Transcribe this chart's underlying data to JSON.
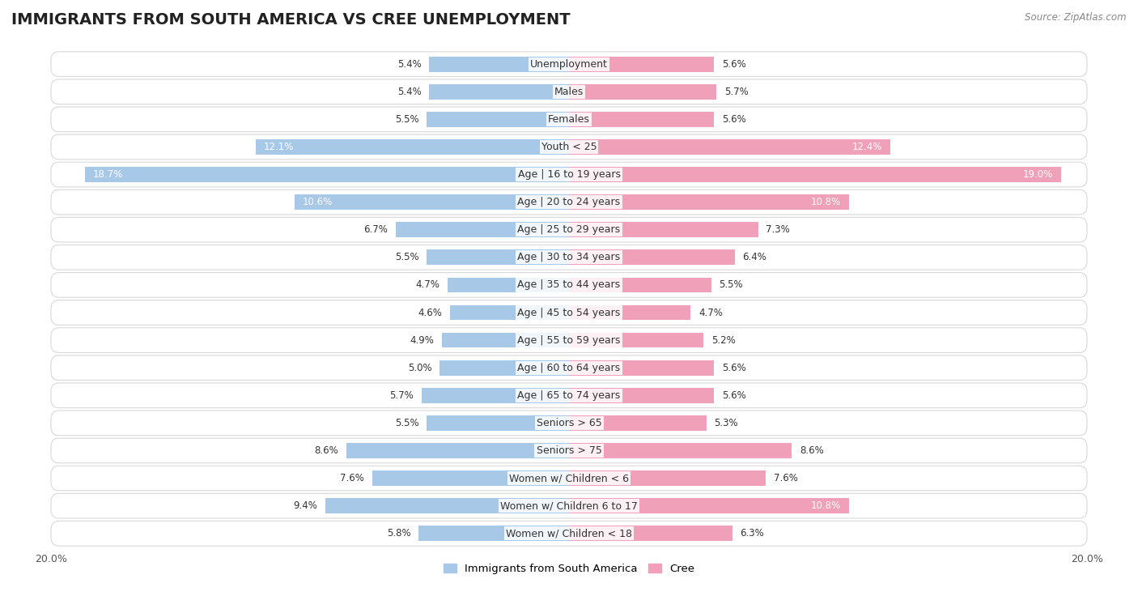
{
  "title": "IMMIGRANTS FROM SOUTH AMERICA VS CREE UNEMPLOYMENT",
  "source": "Source: ZipAtlas.com",
  "categories": [
    "Unemployment",
    "Males",
    "Females",
    "Youth < 25",
    "Age | 16 to 19 years",
    "Age | 20 to 24 years",
    "Age | 25 to 29 years",
    "Age | 30 to 34 years",
    "Age | 35 to 44 years",
    "Age | 45 to 54 years",
    "Age | 55 to 59 years",
    "Age | 60 to 64 years",
    "Age | 65 to 74 years",
    "Seniors > 65",
    "Seniors > 75",
    "Women w/ Children < 6",
    "Women w/ Children 6 to 17",
    "Women w/ Children < 18"
  ],
  "left_values": [
    5.4,
    5.4,
    5.5,
    12.1,
    18.7,
    10.6,
    6.7,
    5.5,
    4.7,
    4.6,
    4.9,
    5.0,
    5.7,
    5.5,
    8.6,
    7.6,
    9.4,
    5.8
  ],
  "right_values": [
    5.6,
    5.7,
    5.6,
    12.4,
    19.0,
    10.8,
    7.3,
    6.4,
    5.5,
    4.7,
    5.2,
    5.6,
    5.6,
    5.3,
    8.6,
    7.6,
    10.8,
    6.3
  ],
  "left_color": "#a8c8e8",
  "right_color": "#f0a0b8",
  "left_label": "Immigrants from South America",
  "right_label": "Cree",
  "max_val": 20.0,
  "background_color": "#ffffff",
  "row_bg_color": "#f5f5f5",
  "row_border_color": "#d8d8d8",
  "title_fontsize": 14,
  "label_fontsize": 9,
  "value_fontsize": 8.5
}
